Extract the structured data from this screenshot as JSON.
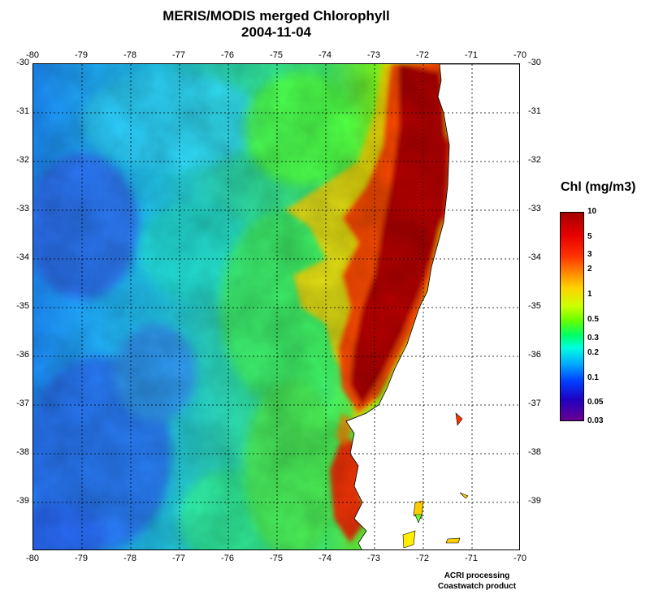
{
  "title": "MERIS/MODIS merged Chlorophyll",
  "date": "2004-11-04",
  "axes": {
    "lon_ticks": [
      "-80",
      "-79",
      "-78",
      "-77",
      "-76",
      "-75",
      "-74",
      "-73",
      "-72",
      "-71",
      "-70"
    ],
    "lat_ticks": [
      "-30",
      "-31",
      "-32",
      "-33",
      "-34",
      "-35",
      "-36",
      "-37",
      "-38",
      "-39"
    ],
    "lon_range": [
      -80,
      -70
    ],
    "lat_range": [
      -30,
      -40
    ],
    "grid": "dotted"
  },
  "colorbar": {
    "title": "Chl (mg/m3)",
    "labels": [
      "10",
      "5",
      "3",
      "2",
      "1",
      "0.5",
      "0.3",
      "0.2",
      "0.1",
      "0.05",
      "0.03"
    ],
    "scale": "log",
    "colors": [
      "#a50000",
      "#ff0000",
      "#ff8800",
      "#ffd000",
      "#66ff00",
      "#00ffe0",
      "#0040ff",
      "#6a0090"
    ]
  },
  "credits": [
    "ACRI processing",
    "Coastwatch product"
  ]
}
